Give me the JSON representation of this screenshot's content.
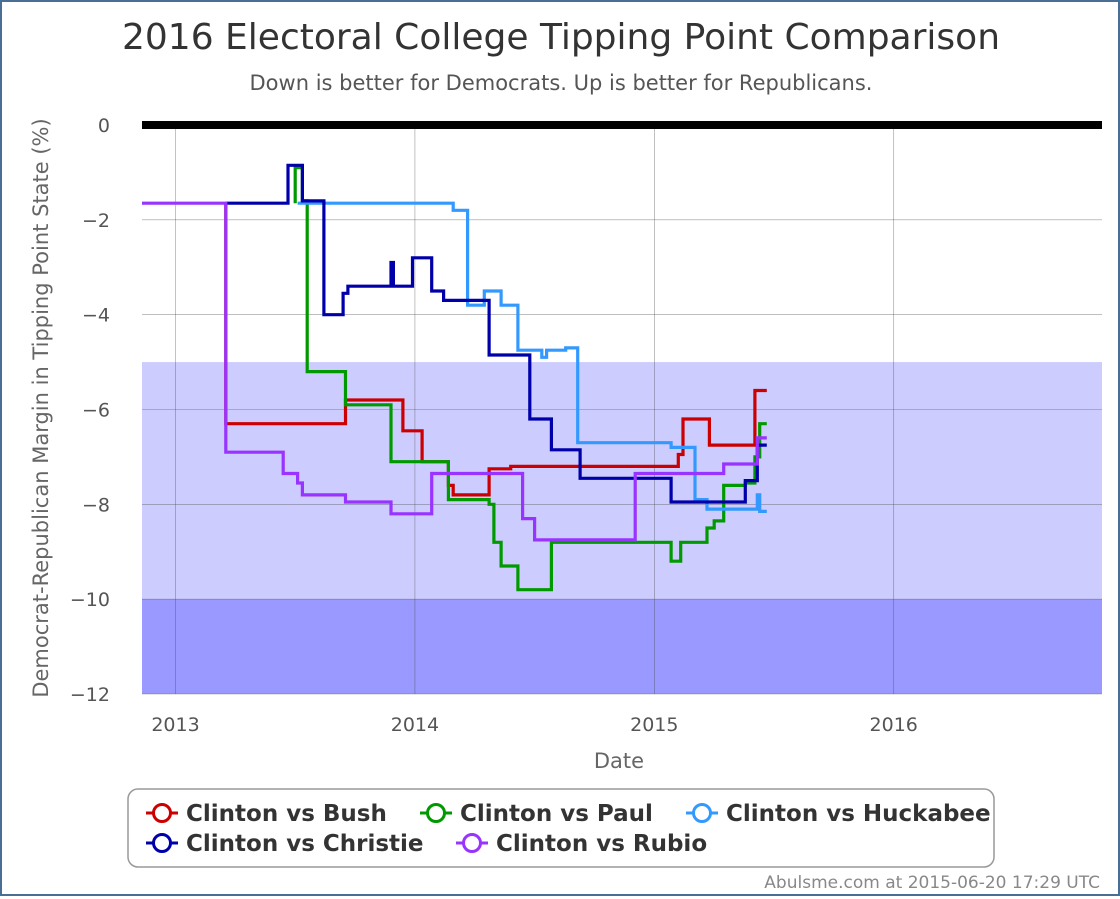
{
  "chart_data": {
    "type": "line",
    "title": "2016 Electoral College Tipping Point Comparison",
    "subtitle": "Down is better for Democrats. Up is better for Republicans.",
    "xlabel": "Date",
    "ylabel": "Democrat-Republican Margin in Tipping Point State (%)",
    "x_ticks": [
      "2013",
      "2014",
      "2015",
      "2016"
    ],
    "y_ticks": [
      0,
      -2,
      -4,
      -6,
      -8,
      -10,
      -12
    ],
    "xlim": [
      2012.86,
      2016.87
    ],
    "ylim": [
      -12,
      0
    ],
    "grid": true,
    "bands": [
      {
        "from": -5,
        "to": -10,
        "color": "#ccccff"
      },
      {
        "from": -10,
        "to": -12,
        "color": "#9999ff"
      }
    ],
    "reference_line": {
      "y": 0,
      "color": "#000000"
    },
    "legend_position": "bottom",
    "series": [
      {
        "name": "Clinton vs Bush",
        "color": "#cc0000",
        "points": [
          [
            2013.21,
            -1.65
          ],
          [
            2013.21,
            -6.3
          ],
          [
            2013.71,
            -6.3
          ],
          [
            2013.71,
            -5.8
          ],
          [
            2013.95,
            -5.8
          ],
          [
            2013.95,
            -6.45
          ],
          [
            2014.03,
            -6.45
          ],
          [
            2014.03,
            -7.1
          ],
          [
            2014.14,
            -7.1
          ],
          [
            2014.14,
            -7.6
          ],
          [
            2014.16,
            -7.6
          ],
          [
            2014.16,
            -7.8
          ],
          [
            2014.31,
            -7.8
          ],
          [
            2014.31,
            -7.25
          ],
          [
            2014.4,
            -7.25
          ],
          [
            2014.4,
            -7.2
          ],
          [
            2014.75,
            -7.2
          ],
          [
            2015.1,
            -7.2
          ],
          [
            2015.1,
            -6.95
          ],
          [
            2015.12,
            -6.95
          ],
          [
            2015.12,
            -6.2
          ],
          [
            2015.23,
            -6.2
          ],
          [
            2015.23,
            -6.75
          ],
          [
            2015.42,
            -6.75
          ],
          [
            2015.42,
            -5.6
          ],
          [
            2015.47,
            -5.6
          ]
        ]
      },
      {
        "name": "Clinton vs Paul",
        "color": "#009900",
        "points": [
          [
            2013.5,
            -1.65
          ],
          [
            2013.5,
            -0.9
          ],
          [
            2013.53,
            -0.9
          ],
          [
            2013.53,
            -1.6
          ],
          [
            2013.55,
            -1.6
          ],
          [
            2013.55,
            -5.2
          ],
          [
            2013.71,
            -5.2
          ],
          [
            2013.71,
            -5.9
          ],
          [
            2013.9,
            -5.9
          ],
          [
            2013.9,
            -7.1
          ],
          [
            2014.14,
            -7.1
          ],
          [
            2014.14,
            -7.9
          ],
          [
            2014.31,
            -7.9
          ],
          [
            2014.31,
            -8.0
          ],
          [
            2014.33,
            -8.0
          ],
          [
            2014.33,
            -8.8
          ],
          [
            2014.36,
            -8.8
          ],
          [
            2014.36,
            -9.3
          ],
          [
            2014.43,
            -9.3
          ],
          [
            2014.43,
            -9.8
          ],
          [
            2014.57,
            -9.8
          ],
          [
            2014.57,
            -8.8
          ],
          [
            2015.07,
            -8.8
          ],
          [
            2015.07,
            -9.2
          ],
          [
            2015.11,
            -9.2
          ],
          [
            2015.11,
            -8.8
          ],
          [
            2015.22,
            -8.8
          ],
          [
            2015.22,
            -8.5
          ],
          [
            2015.25,
            -8.5
          ],
          [
            2015.25,
            -8.35
          ],
          [
            2015.29,
            -8.35
          ],
          [
            2015.29,
            -7.6
          ],
          [
            2015.38,
            -7.6
          ],
          [
            2015.38,
            -7.55
          ],
          [
            2015.42,
            -7.55
          ],
          [
            2015.42,
            -7.0
          ],
          [
            2015.44,
            -7.0
          ],
          [
            2015.44,
            -6.3
          ],
          [
            2015.47,
            -6.3
          ]
        ]
      },
      {
        "name": "Clinton vs Huckabee",
        "color": "#3399ff",
        "points": [
          [
            2013.51,
            -1.65
          ],
          [
            2014.16,
            -1.65
          ],
          [
            2014.16,
            -1.8
          ],
          [
            2014.22,
            -1.8
          ],
          [
            2014.22,
            -3.8
          ],
          [
            2014.29,
            -3.8
          ],
          [
            2014.29,
            -3.5
          ],
          [
            2014.36,
            -3.5
          ],
          [
            2014.36,
            -3.8
          ],
          [
            2014.43,
            -3.8
          ],
          [
            2014.43,
            -4.75
          ],
          [
            2014.53,
            -4.75
          ],
          [
            2014.53,
            -4.9
          ],
          [
            2014.55,
            -4.9
          ],
          [
            2014.55,
            -4.75
          ],
          [
            2014.63,
            -4.75
          ],
          [
            2014.63,
            -4.7
          ],
          [
            2014.68,
            -4.7
          ],
          [
            2014.68,
            -6.7
          ],
          [
            2015.07,
            -6.7
          ],
          [
            2015.07,
            -6.8
          ],
          [
            2015.17,
            -6.8
          ],
          [
            2015.17,
            -7.9
          ],
          [
            2015.22,
            -7.9
          ],
          [
            2015.22,
            -8.1
          ],
          [
            2015.43,
            -8.1
          ],
          [
            2015.43,
            -7.8
          ],
          [
            2015.44,
            -7.8
          ],
          [
            2015.44,
            -8.15
          ],
          [
            2015.47,
            -8.15
          ]
        ]
      },
      {
        "name": "Clinton vs Christie",
        "color": "#0000aa",
        "points": [
          [
            2013.21,
            -1.65
          ],
          [
            2013.47,
            -1.65
          ],
          [
            2013.47,
            -0.85
          ],
          [
            2013.53,
            -0.85
          ],
          [
            2013.53,
            -1.6
          ],
          [
            2013.62,
            -1.6
          ],
          [
            2013.62,
            -4.0
          ],
          [
            2013.7,
            -4.0
          ],
          [
            2013.7,
            -3.55
          ],
          [
            2013.72,
            -3.55
          ],
          [
            2013.72,
            -3.4
          ],
          [
            2013.9,
            -3.4
          ],
          [
            2013.9,
            -2.9
          ],
          [
            2013.91,
            -2.9
          ],
          [
            2013.91,
            -3.4
          ],
          [
            2013.99,
            -3.4
          ],
          [
            2013.99,
            -2.8
          ],
          [
            2014.07,
            -2.8
          ],
          [
            2014.07,
            -3.5
          ],
          [
            2014.12,
            -3.5
          ],
          [
            2014.12,
            -3.7
          ],
          [
            2014.31,
            -3.7
          ],
          [
            2014.31,
            -4.85
          ],
          [
            2014.48,
            -4.85
          ],
          [
            2014.48,
            -6.2
          ],
          [
            2014.57,
            -6.2
          ],
          [
            2014.57,
            -6.85
          ],
          [
            2014.69,
            -6.85
          ],
          [
            2014.69,
            -7.45
          ],
          [
            2015.07,
            -7.45
          ],
          [
            2015.07,
            -7.95
          ],
          [
            2015.38,
            -7.95
          ],
          [
            2015.38,
            -7.5
          ],
          [
            2015.43,
            -7.5
          ],
          [
            2015.43,
            -6.75
          ],
          [
            2015.47,
            -6.75
          ]
        ]
      },
      {
        "name": "Clinton vs Rubio",
        "color": "#9933ff",
        "points": [
          [
            2012.86,
            -1.65
          ],
          [
            2013.21,
            -1.65
          ],
          [
            2013.21,
            -6.9
          ],
          [
            2013.45,
            -6.9
          ],
          [
            2013.45,
            -7.35
          ],
          [
            2013.51,
            -7.35
          ],
          [
            2013.51,
            -7.55
          ],
          [
            2013.53,
            -7.55
          ],
          [
            2013.53,
            -7.8
          ],
          [
            2013.71,
            -7.8
          ],
          [
            2013.71,
            -7.95
          ],
          [
            2013.9,
            -7.95
          ],
          [
            2013.9,
            -8.2
          ],
          [
            2014.07,
            -8.2
          ],
          [
            2014.07,
            -7.35
          ],
          [
            2014.45,
            -7.35
          ],
          [
            2014.45,
            -8.3
          ],
          [
            2014.5,
            -8.3
          ],
          [
            2014.5,
            -8.75
          ],
          [
            2014.92,
            -8.75
          ],
          [
            2014.92,
            -7.35
          ],
          [
            2015.29,
            -7.35
          ],
          [
            2015.29,
            -7.15
          ],
          [
            2015.43,
            -7.15
          ],
          [
            2015.43,
            -6.6
          ],
          [
            2015.47,
            -6.6
          ]
        ]
      }
    ]
  },
  "legend": [
    {
      "label": "Clinton vs Bush",
      "color": "#cc0000"
    },
    {
      "label": "Clinton vs Paul",
      "color": "#009900"
    },
    {
      "label": "Clinton vs Huckabee",
      "color": "#3399ff"
    },
    {
      "label": "Clinton vs Christie",
      "color": "#0000aa"
    },
    {
      "label": "Clinton vs Rubio",
      "color": "#9933ff"
    }
  ],
  "credit": "Abulsme.com at 2015-06-20 17:29 UTC"
}
